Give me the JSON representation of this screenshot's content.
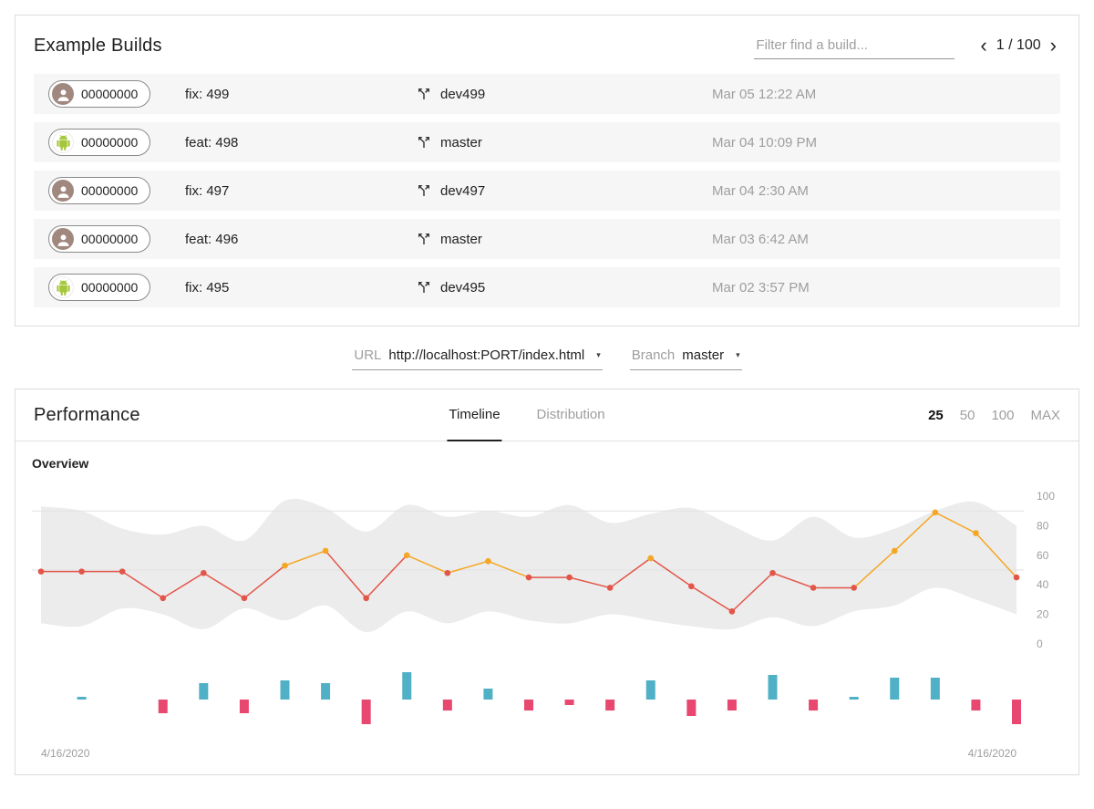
{
  "builds": {
    "title": "Example Builds",
    "filter_placeholder": "Filter find a build...",
    "pagination": {
      "prev": "‹",
      "current": "1 / 100",
      "next": "›"
    },
    "rows": [
      {
        "avatar": "person",
        "hash": "00000000",
        "message": "fix: 499",
        "branch": "dev499",
        "date": "Mar 05 12:22 AM"
      },
      {
        "avatar": "android",
        "hash": "00000000",
        "message": "feat: 498",
        "branch": "master",
        "date": "Mar 04 10:09 PM"
      },
      {
        "avatar": "person",
        "hash": "00000000",
        "message": "fix: 497",
        "branch": "dev497",
        "date": "Mar 04 2:30 AM"
      },
      {
        "avatar": "person",
        "hash": "00000000",
        "message": "feat: 496",
        "branch": "master",
        "date": "Mar 03 6:42 AM"
      },
      {
        "avatar": "android",
        "hash": "00000000",
        "message": "fix: 495",
        "branch": "dev495",
        "date": "Mar 02 3:57 PM"
      }
    ]
  },
  "selectors": {
    "caret": "▾",
    "url": {
      "label": "URL",
      "value": "http://localhost:PORT/index.html"
    },
    "branch": {
      "label": "Branch",
      "value": "master"
    }
  },
  "performance": {
    "title": "Performance",
    "tabs": [
      {
        "label": "Timeline",
        "active": true
      },
      {
        "label": "Distribution",
        "active": false
      }
    ],
    "sizes": [
      {
        "label": "25",
        "active": true
      },
      {
        "label": "50",
        "active": false
      },
      {
        "label": "100",
        "active": false
      },
      {
        "label": "MAX",
        "active": false
      }
    ],
    "section_title": "Overview"
  },
  "chart_data": {
    "type": "line+bar",
    "title": "Overview",
    "x_start_label": "4/16/2020",
    "x_end_label": "4/16/2020",
    "ylim": [
      0,
      100
    ],
    "yticks": [
      0,
      20,
      40,
      60,
      80,
      100
    ],
    "gridlines": [
      50,
      90
    ],
    "score": [
      49,
      49,
      49,
      31,
      48,
      31,
      53,
      63,
      31,
      60,
      48,
      56,
      45,
      45,
      38,
      58,
      39,
      22,
      48,
      38,
      38,
      63,
      89,
      75,
      45
    ],
    "band_upper": [
      93,
      90,
      78,
      74,
      80,
      70,
      97,
      92,
      76,
      94,
      86,
      90,
      86,
      94,
      82,
      88,
      92,
      80,
      70,
      86,
      72,
      78,
      90,
      96,
      80
    ],
    "band_lower": [
      14,
      12,
      24,
      20,
      10,
      24,
      16,
      26,
      8,
      22,
      14,
      22,
      16,
      14,
      20,
      16,
      12,
      10,
      18,
      12,
      22,
      26,
      38,
      30,
      20
    ],
    "delta": [
      0,
      1,
      0,
      -5,
      6,
      -5,
      7,
      6,
      -9,
      10,
      -4,
      4,
      -4,
      -2,
      -4,
      7,
      -6,
      -4,
      9,
      -4,
      1,
      8,
      8,
      -4,
      -9
    ],
    "colors": {
      "band": "#ececec",
      "grid": "#e2e2e2",
      "axis": "#9e9e9e",
      "fail": "#e35549",
      "average": "#f5a623",
      "pass": "#1e9e57",
      "improve": "#4fb0c6",
      "regress": "#e8476f"
    }
  }
}
